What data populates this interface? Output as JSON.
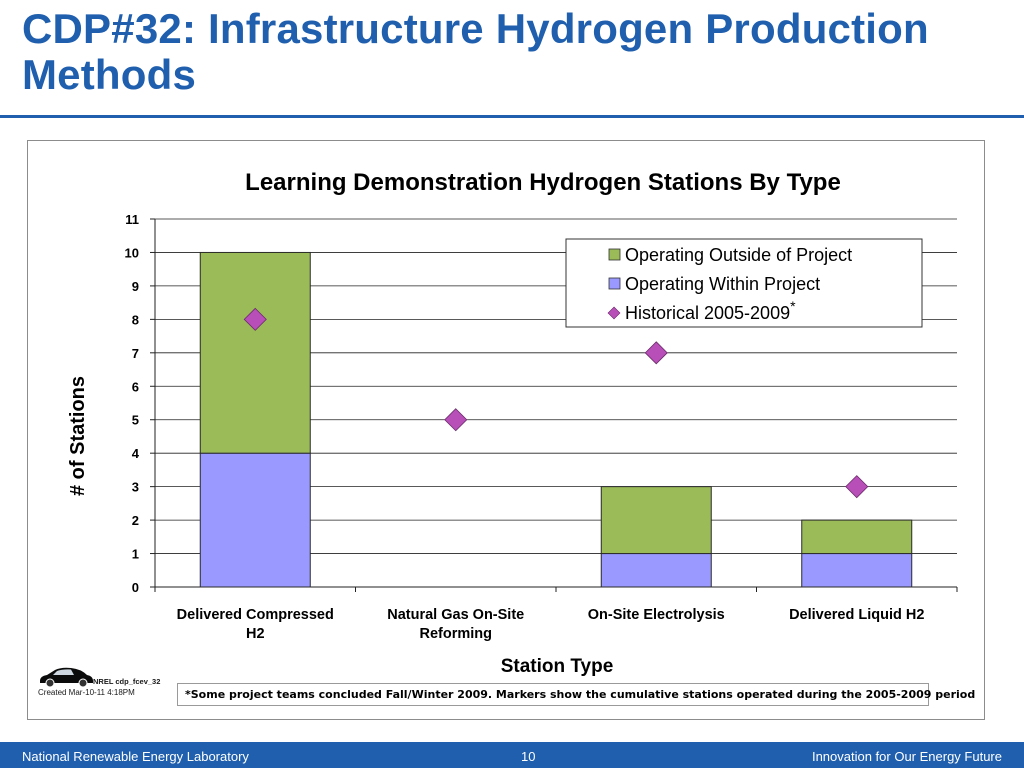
{
  "slide": {
    "title": "CDP#32: Infrastructure Hydrogen Production Methods"
  },
  "chart_data": {
    "type": "bar",
    "stacked": true,
    "title": "Learning Demonstration Hydrogen Stations By Type",
    "xlabel": "Station Type",
    "ylabel": "# of Stations",
    "ylim": [
      0,
      11
    ],
    "yticks": [
      0,
      1,
      2,
      3,
      4,
      5,
      6,
      7,
      8,
      9,
      10,
      11
    ],
    "grid": true,
    "legend_position": "top-right",
    "categories": [
      [
        "Delivered Compressed",
        "H2"
      ],
      [
        "Natural Gas On-Site",
        "Reforming"
      ],
      [
        "On-Site Electrolysis"
      ],
      [
        "Delivered Liquid H2"
      ]
    ],
    "series": [
      {
        "name": "Operating Within Project",
        "kind": "bar",
        "color": "#9999ff",
        "values": [
          4,
          0,
          1,
          1
        ]
      },
      {
        "name": "Operating Outside of Project",
        "kind": "bar",
        "color": "#9bbb59",
        "values": [
          6,
          0,
          2,
          1
        ]
      },
      {
        "name": "Historical 2005-2009",
        "name_mark": "*",
        "kind": "marker",
        "marker": "diamond",
        "color": "#b84fb8",
        "values": [
          8,
          5,
          7,
          3
        ]
      }
    ],
    "legend_order": [
      "Operating Outside of Project",
      "Operating Within Project",
      "Historical 2005-2009"
    ]
  },
  "branding": {
    "logo_id": "NREL cdp_fcev_32",
    "created": "Created Mar-10-11 4:18PM"
  },
  "footnote": "*Some project teams concluded Fall/Winter 2009.  Markers show the cumulative stations operated during the 2005-2009 period",
  "footer": {
    "left": "National Renewable Energy Laboratory",
    "page": "10",
    "right": "Innovation for Our Energy Future"
  }
}
